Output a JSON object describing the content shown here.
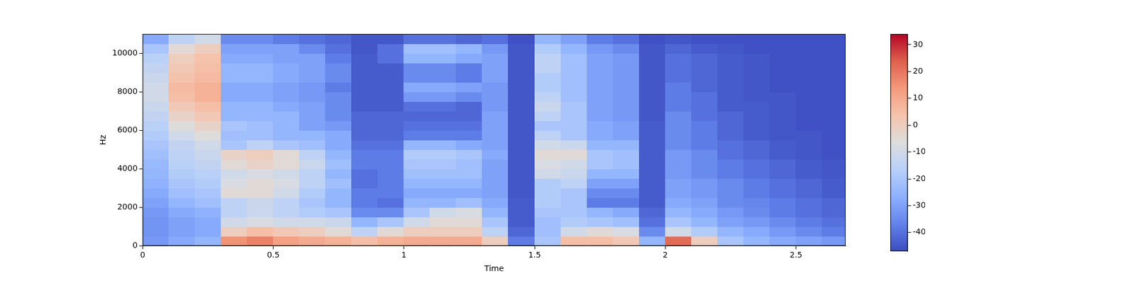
{
  "chart_data": {
    "type": "heatmap",
    "x_label": "Time",
    "y_label": "Hz",
    "xlim": [
      0,
      2.69
    ],
    "xticks": [
      0,
      0.5,
      1,
      1.5,
      2,
      2.5
    ],
    "ylim": [
      0,
      11025
    ],
    "yticks": [
      0,
      2000,
      4000,
      6000,
      8000,
      10000
    ],
    "x": [
      0.05,
      0.15,
      0.25,
      0.35,
      0.45,
      0.55,
      0.65,
      0.75,
      0.85,
      0.95,
      1.05,
      1.15,
      1.25,
      1.35,
      1.45,
      1.55,
      1.65,
      1.75,
      1.85,
      1.95,
      2.05,
      2.15,
      2.25,
      2.35,
      2.45,
      2.55,
      2.65
    ],
    "y": [
      250,
      750,
      1250,
      1750,
      2250,
      2750,
      3250,
      3750,
      4250,
      4750,
      5250,
      5750,
      6250,
      6750,
      7250,
      7750,
      8250,
      8750,
      9250,
      9750,
      10250,
      10750
    ],
    "z": [
      [
        -32,
        -33,
        -33,
        -32,
        -30,
        -28,
        -26,
        -25,
        -24,
        -22,
        -20,
        -18,
        -16,
        -14,
        -12,
        -10,
        -10,
        -12,
        -14,
        -16,
        -20,
        -28
      ],
      [
        -28,
        -30,
        -30,
        -28,
        -25,
        -22,
        -20,
        -18,
        -16,
        -15,
        -14,
        -10,
        -6,
        -2,
        2,
        5,
        6,
        4,
        2,
        0,
        -5,
        -15
      ],
      [
        -25,
        -28,
        -28,
        -26,
        -22,
        -20,
        -18,
        -16,
        -14,
        -12,
        -10,
        -6,
        -2,
        2,
        5,
        8,
        8,
        6,
        5,
        4,
        0,
        -10
      ],
      [
        15,
        0,
        -10,
        -15,
        -15,
        -5,
        -8,
        -10,
        -5,
        -2,
        -20,
        -22,
        -20,
        -25,
        -25,
        -28,
        -28,
        -25,
        -25,
        -28,
        -30,
        -35
      ],
      [
        18,
        5,
        -8,
        -12,
        -12,
        -5,
        -5,
        -8,
        -2,
        0,
        -15,
        -22,
        -22,
        -25,
        -25,
        -28,
        -28,
        -25,
        -25,
        -28,
        -30,
        -35
      ],
      [
        12,
        2,
        -10,
        -15,
        -15,
        -10,
        -8,
        -10,
        -5,
        -5,
        -20,
        -25,
        -25,
        -25,
        -28,
        -30,
        -30,
        -28,
        -28,
        -30,
        -30,
        -38
      ],
      [
        10,
        0,
        -10,
        -18,
        -20,
        -18,
        -15,
        -15,
        -12,
        -15,
        -22,
        -25,
        -30,
        -30,
        -30,
        -32,
        -32,
        -30,
        -30,
        -30,
        -35,
        -40
      ],
      [
        8,
        -5,
        -12,
        -20,
        -25,
        -25,
        -22,
        -25,
        -22,
        -25,
        -28,
        -28,
        -32,
        -35,
        -35,
        -35,
        -38,
        -35,
        -35,
        -38,
        -40,
        -42
      ],
      [
        5,
        -15,
        -25,
        -35,
        -38,
        -38,
        -40,
        -40,
        -38,
        -38,
        -40,
        -42,
        -42,
        -42,
        -44,
        -44,
        -44,
        -44,
        -44,
        -44,
        -45,
        -45
      ],
      [
        8,
        -5,
        -20,
        -35,
        -40,
        -38,
        -38,
        -38,
        -38,
        -38,
        -40,
        -42,
        -42,
        -42,
        -44,
        -44,
        -44,
        -44,
        -44,
        -40,
        -40,
        -45
      ],
      [
        10,
        0,
        -10,
        -20,
        -25,
        -28,
        -25,
        -22,
        -20,
        -18,
        -25,
        -38,
        -40,
        -42,
        -40,
        -32,
        -28,
        -35,
        -35,
        -25,
        -22,
        -40
      ],
      [
        10,
        0,
        -5,
        -10,
        -25,
        -28,
        -25,
        -22,
        -20,
        -18,
        -25,
        -38,
        -40,
        -42,
        -40,
        -32,
        -28,
        -35,
        -35,
        -25,
        -22,
        -40
      ],
      [
        10,
        0,
        -5,
        -8,
        -22,
        -28,
        -25,
        -22,
        -22,
        -20,
        -28,
        -38,
        -40,
        -42,
        -42,
        -35,
        -30,
        -38,
        -38,
        -28,
        -25,
        -42
      ],
      [
        0,
        -15,
        -20,
        -25,
        -28,
        -30,
        -30,
        -30,
        -30,
        -28,
        -30,
        -30,
        -30,
        -30,
        -32,
        -32,
        -32,
        -30,
        -30,
        -30,
        -32,
        -40
      ],
      [
        -38,
        -42,
        -44,
        -44,
        -44,
        -45,
        -45,
        -45,
        -45,
        -45,
        -45,
        -45,
        -45,
        -45,
        -45,
        -45,
        -45,
        -45,
        -45,
        -45,
        -45,
        -46
      ],
      [
        -20,
        -22,
        -22,
        -20,
        -18,
        -18,
        -18,
        -10,
        -8,
        -5,
        -10,
        -15,
        -20,
        -15,
        -12,
        -15,
        -18,
        -18,
        -15,
        -15,
        -18,
        -25
      ],
      [
        5,
        -10,
        -18,
        -20,
        -20,
        -20,
        -15,
        -12,
        -10,
        -5,
        -12,
        -20,
        -20,
        -20,
        -20,
        -22,
        -22,
        -22,
        -22,
        -22,
        -25,
        -30
      ],
      [
        5,
        -5,
        -20,
        -25,
        -38,
        -35,
        -30,
        -25,
        -20,
        -20,
        -25,
        -28,
        -28,
        -30,
        -30,
        -30,
        -30,
        -30,
        -30,
        -30,
        -32,
        -38
      ],
      [
        2,
        -8,
        -22,
        -28,
        -38,
        -35,
        -30,
        -25,
        -22,
        -22,
        -25,
        -30,
        -30,
        -32,
        -32,
        -32,
        -32,
        -32,
        -32,
        -32,
        -35,
        -40
      ],
      [
        -25,
        -35,
        -40,
        -42,
        -44,
        -44,
        -44,
        -44,
        -44,
        -44,
        -44,
        -44,
        -44,
        -45,
        -45,
        -45,
        -45,
        -45,
        -45,
        -45,
        -45,
        -46
      ],
      [
        22,
        -10,
        -20,
        -25,
        -28,
        -30,
        -30,
        -32,
        -32,
        -32,
        -35,
        -35,
        -35,
        -35,
        -38,
        -38,
        -38,
        -40,
        -40,
        -40,
        -42,
        -45
      ],
      [
        0,
        -18,
        -25,
        -28,
        -30,
        -32,
        -32,
        -35,
        -35,
        -35,
        -38,
        -38,
        -38,
        -40,
        -40,
        -40,
        -42,
        -42,
        -42,
        -42,
        -44,
        -46
      ],
      [
        -20,
        -25,
        -30,
        -32,
        -35,
        -35,
        -35,
        -38,
        -38,
        -40,
        -40,
        -42,
        -42,
        -42,
        -44,
        -44,
        -44,
        -44,
        -44,
        -44,
        -45,
        -46
      ],
      [
        -25,
        -28,
        -32,
        -35,
        -36,
        -38,
        -38,
        -40,
        -40,
        -42,
        -42,
        -44,
        -44,
        -44,
        -44,
        -45,
        -45,
        -45,
        -45,
        -45,
        -46,
        -46
      ],
      [
        -28,
        -32,
        -35,
        -38,
        -38,
        -40,
        -40,
        -42,
        -42,
        -44,
        -44,
        -45,
        -45,
        -45,
        -45,
        -45,
        -46,
        -46,
        -46,
        -46,
        -46,
        -46
      ],
      [
        -30,
        -35,
        -38,
        -40,
        -40,
        -42,
        -42,
        -44,
        -44,
        -45,
        -45,
        -45,
        -46,
        -46,
        -46,
        -46,
        -46,
        -46,
        -46,
        -46,
        -46,
        -46
      ],
      [
        -32,
        -38,
        -40,
        -42,
        -42,
        -44,
        -44,
        -45,
        -45,
        -46,
        -46,
        -46,
        -46,
        -46,
        -46,
        -46,
        -46,
        -46,
        -46,
        -46,
        -46,
        -46
      ]
    ],
    "colorbar": {
      "range": [
        -47,
        34
      ],
      "ticks": [
        -40,
        -30,
        -20,
        -10,
        0,
        10,
        20,
        30
      ]
    }
  }
}
